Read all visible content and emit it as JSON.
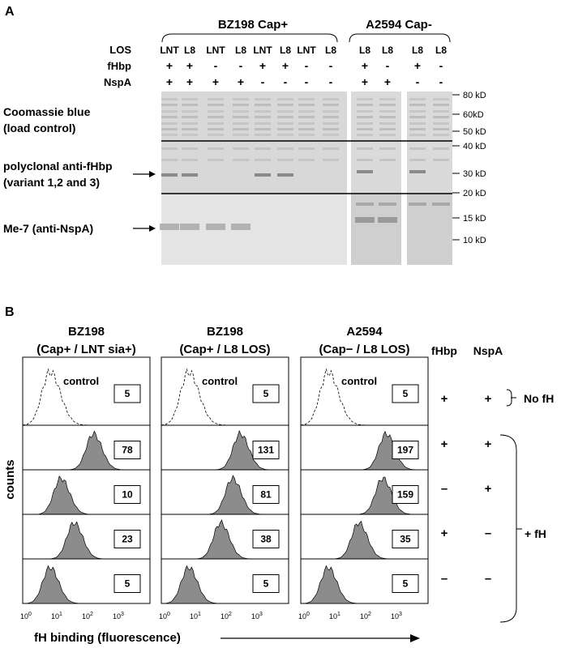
{
  "panelA": {
    "label": "A",
    "groups": [
      {
        "name": "BZ198 Cap+"
      },
      {
        "name": "A2594 Cap-"
      }
    ],
    "row_headers": {
      "los": "LOS",
      "fhbp": "fHbp",
      "nspa": "NspA"
    },
    "lanes": [
      {
        "los": "LNT",
        "fhbp": "+",
        "nspa": "+"
      },
      {
        "los": "L8",
        "fhbp": "+",
        "nspa": "+"
      },
      {
        "los": "LNT",
        "fhbp": "-",
        "nspa": "+"
      },
      {
        "los": "L8",
        "fhbp": "-",
        "nspa": "+"
      },
      {
        "los": "LNT",
        "fhbp": "+",
        "nspa": "-"
      },
      {
        "los": "L8",
        "fhbp": "+",
        "nspa": "-"
      },
      {
        "los": "LNT",
        "fhbp": "-",
        "nspa": "-"
      },
      {
        "los": "L8",
        "fhbp": "-",
        "nspa": "-"
      },
      {
        "los": "L8",
        "fhbp": "+",
        "nspa": "+"
      },
      {
        "los": "L8",
        "fhbp": "-",
        "nspa": "+"
      },
      {
        "los": "L8",
        "fhbp": "+",
        "nspa": "-"
      },
      {
        "los": "L8",
        "fhbp": "-",
        "nspa": "-"
      }
    ],
    "blot_sections": [
      {
        "line1": "Coomassie blue",
        "line2": "(load control)"
      },
      {
        "line1": "polyclonal anti-fHbp",
        "line2": "(variant 1,2 and 3)"
      },
      {
        "line1": "Me-7 (anti-NspA)",
        "line2": ""
      }
    ],
    "markers": [
      "80 kD",
      "60kD",
      "50 kD",
      "40 kD",
      "30 kD",
      "20 kD",
      "15 kD",
      "10 kD"
    ]
  },
  "panelB": {
    "label": "B",
    "y_label": "counts",
    "x_label": "fH binding (fluorescence)",
    "tick_base": "10",
    "tick_exps": [
      "0",
      "1",
      "2",
      "3"
    ],
    "control_label": "control",
    "column_headers": {
      "fhbp": "fHbp",
      "nspa": "NspA"
    },
    "columns": [
      {
        "title": "BZ198",
        "subtitle": "(Cap+ / LNT sia+)",
        "values": [
          "5",
          "78",
          "10",
          "23",
          "5"
        ]
      },
      {
        "title": "BZ198",
        "subtitle": "(Cap+ / L8 LOS)",
        "values": [
          "5",
          "131",
          "81",
          "38",
          "5"
        ]
      },
      {
        "title": "A2594",
        "subtitle": "(Cap− / L8 LOS)",
        "values": [
          "5",
          "197",
          "159",
          "35",
          "5"
        ]
      }
    ],
    "rows": [
      {
        "fhbp": "+",
        "nspa": "+"
      },
      {
        "fhbp": "+",
        "nspa": "+"
      },
      {
        "fhbp": "–",
        "nspa": "+"
      },
      {
        "fhbp": "+",
        "nspa": "–"
      },
      {
        "fhbp": "–",
        "nspa": "–"
      }
    ],
    "bracket_labels": {
      "no_fh": "No fH",
      "plus_fh": "+ fH"
    }
  },
  "colors": {
    "histogram_fill": "#8c8c8c",
    "gel_light": "#dcdcdc",
    "gel_dark": "#c8c8c8"
  }
}
